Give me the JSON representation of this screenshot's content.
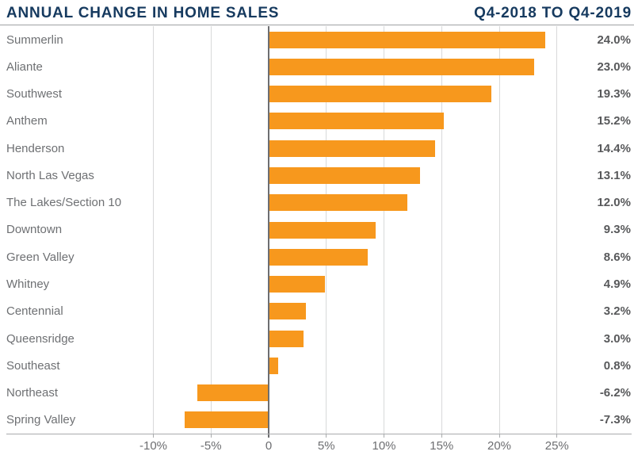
{
  "header": {
    "title": "ANNUAL CHANGE IN HOME SALES",
    "period": "Q4-2018 TO Q4-2019"
  },
  "chart_data": {
    "type": "bar",
    "orientation": "horizontal",
    "title": "ANNUAL CHANGE IN HOME SALES",
    "subtitle": "Q4-2018 TO Q4-2019",
    "categories": [
      "Summerlin",
      "Aliante",
      "Southwest",
      "Anthem",
      "Henderson",
      "North Las Vegas",
      "The Lakes/Section 10",
      "Downtown",
      "Green Valley",
      "Whitney",
      "Centennial",
      "Queensridge",
      "Southeast",
      "Northeast",
      "Spring Valley"
    ],
    "values": [
      24.0,
      23.0,
      19.3,
      15.2,
      14.4,
      13.1,
      12.0,
      9.3,
      8.6,
      4.9,
      3.2,
      3.0,
      0.8,
      -6.2,
      -7.3
    ],
    "value_labels": [
      "24.0%",
      "23.0%",
      "19.3%",
      "15.2%",
      "14.4%",
      "13.1%",
      "12.0%",
      "9.3%",
      "8.6%",
      "4.9%",
      "3.2%",
      "3.0%",
      "0.8%",
      "-6.2%",
      "-7.3%"
    ],
    "xlabel": "",
    "ylabel": "",
    "x_axis": {
      "ticks": [
        -10,
        -5,
        0,
        5,
        10,
        15,
        20,
        25
      ],
      "tick_labels": [
        "-10%",
        "-5%",
        "0",
        "5%",
        "10%",
        "15%",
        "20%",
        "25%"
      ],
      "xlim": [
        -12.5,
        31.5
      ],
      "grid": true,
      "zero_line": true
    },
    "legend": null,
    "colors": {
      "bar": "#F7981D",
      "title": "#163A5F",
      "category_label": "#6E7073",
      "value_label": "#58595B",
      "tick_label": "#6D6E71",
      "gridline": "#D8D9DA",
      "zero_line": "#6D6E71",
      "axis_line": "#A9ABAD"
    }
  }
}
